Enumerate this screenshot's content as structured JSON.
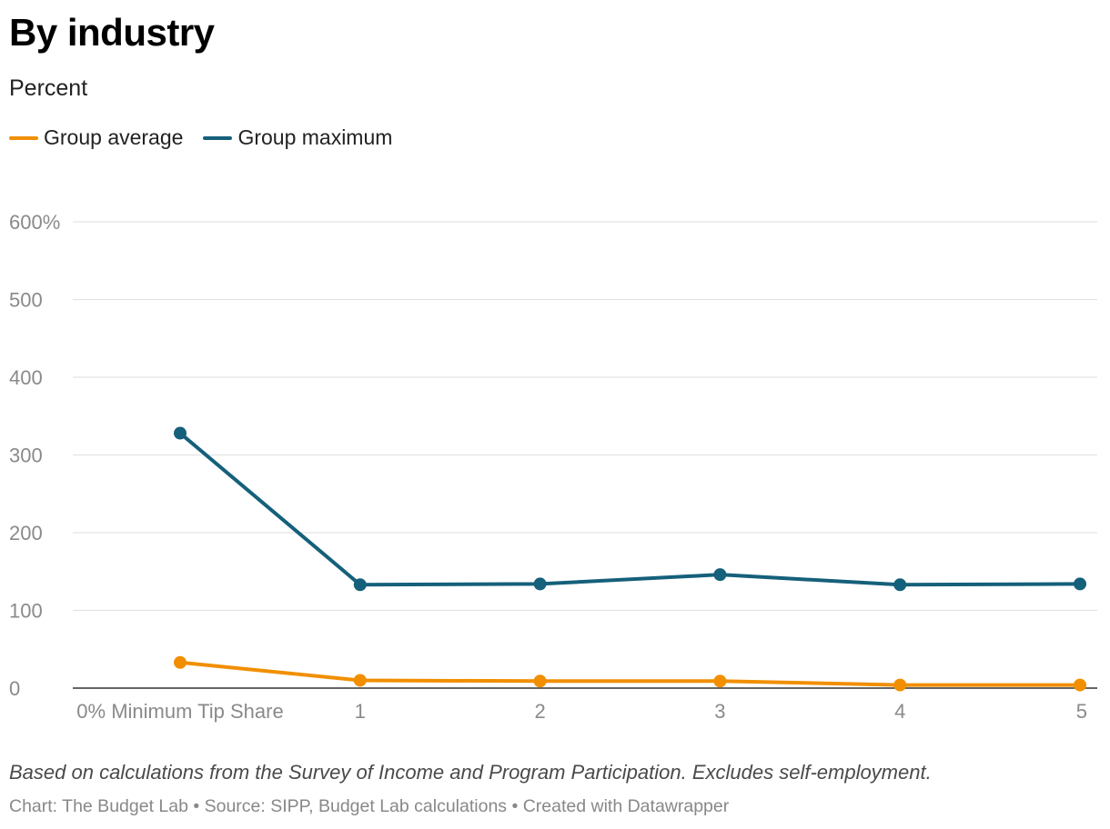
{
  "header": {
    "title": "By industry",
    "subtitle": "Percent"
  },
  "legend": [
    {
      "label": "Group average",
      "color": "#f18f01"
    },
    {
      "label": "Group maximum",
      "color": "#15607a"
    }
  ],
  "chart_data": {
    "type": "line",
    "title": "By industry",
    "subtitle": "Percent",
    "x": [
      "0% Minimum Tip Share",
      "1",
      "2",
      "3",
      "4",
      "5"
    ],
    "ylim": [
      0,
      600
    ],
    "yticks": [
      0,
      100,
      200,
      300,
      400,
      500,
      600
    ],
    "ytick_labels": [
      "0",
      "100",
      "200",
      "300",
      "400",
      "500",
      "600%"
    ],
    "grid": true,
    "legend_position": "top-left",
    "series": [
      {
        "name": "Group average",
        "color": "#f18f01",
        "values": [
          33,
          10,
          9,
          9,
          4,
          4
        ]
      },
      {
        "name": "Group maximum",
        "color": "#15607a",
        "values": [
          328,
          133,
          134,
          146,
          133,
          134
        ]
      }
    ]
  },
  "footer": {
    "notes": "Based on calculations from the Survey of Income and Program Participation. Excludes self-employment.",
    "credit": "Chart: The Budget Lab • Source: SIPP, Budget Lab calculations • Created with Datawrapper"
  }
}
